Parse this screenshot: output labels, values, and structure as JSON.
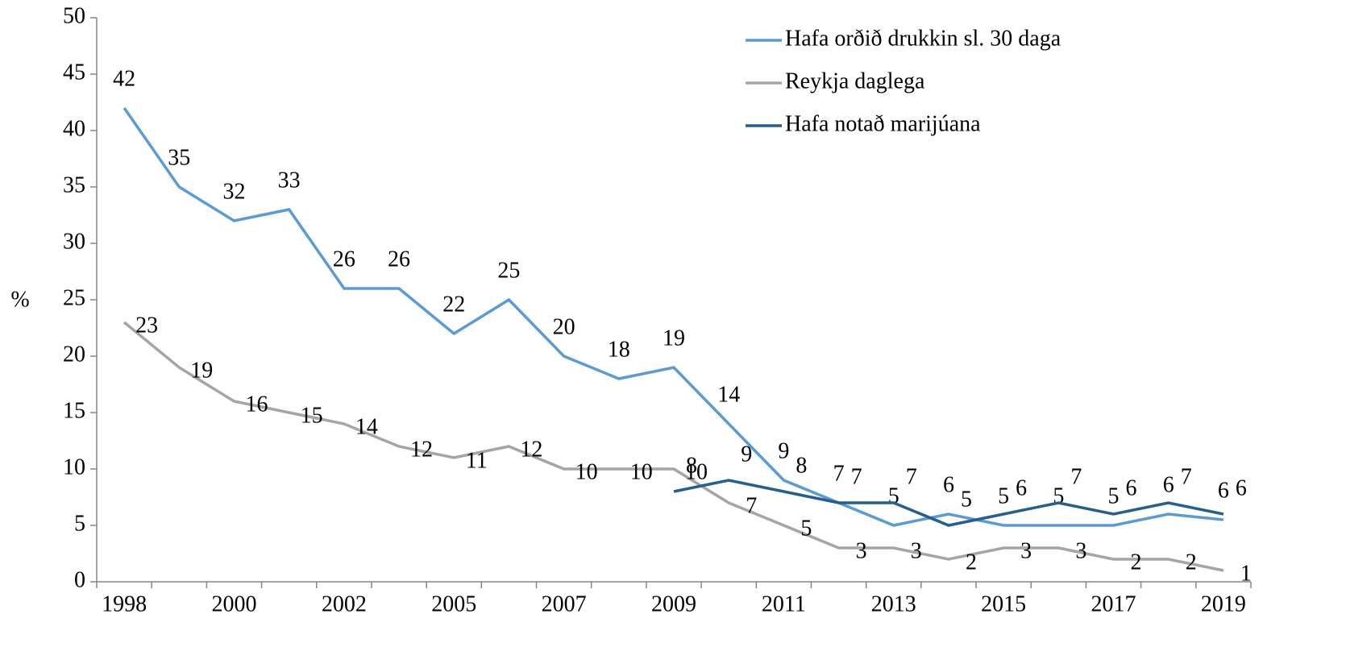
{
  "chart_data": {
    "type": "line",
    "y_label": "%",
    "categories": [
      "1998",
      null,
      "2000",
      null,
      "2002",
      null,
      "2005",
      null,
      "2007",
      null,
      "2009",
      null,
      "2011",
      null,
      "2013",
      null,
      "2015",
      null,
      "2017",
      null,
      "2019"
    ],
    "ylim": [
      0,
      50
    ],
    "yticks": [
      0,
      5,
      10,
      15,
      20,
      25,
      30,
      35,
      40,
      45,
      50
    ],
    "legend": "top-right",
    "series": [
      {
        "name": "Hafa orðið drukkin sl. 30 daga",
        "color": "#5b9bd5",
        "label_color": "#ff0000",
        "values": [
          42,
          35,
          32,
          33,
          26,
          26,
          22,
          25,
          20,
          18,
          19,
          14,
          9,
          7,
          5,
          6,
          5,
          5,
          5,
          6,
          5.5
        ],
        "value_labels": [
          "42",
          "35",
          "32",
          "33",
          "26",
          "26",
          "22",
          "25",
          "20",
          "18",
          "19",
          "14",
          "9",
          "7",
          "5",
          "6",
          "5",
          "5",
          "5",
          "6",
          "6"
        ]
      },
      {
        "name": "Reykja daglega",
        "color": "#a5a5a5",
        "label_color": "#000000",
        "values": [
          23,
          19,
          16,
          15,
          14,
          12,
          11,
          12,
          10,
          10,
          10,
          7,
          5,
          3,
          3,
          2,
          3,
          3,
          2,
          2,
          1
        ]
      },
      {
        "name": "Hafa notað marijúana",
        "color": "#255e91",
        "label_color": "#000000",
        "values": [
          null,
          null,
          null,
          null,
          null,
          null,
          null,
          null,
          null,
          null,
          8,
          9,
          8,
          7,
          7,
          5,
          6,
          7,
          6,
          7,
          6
        ]
      }
    ]
  }
}
